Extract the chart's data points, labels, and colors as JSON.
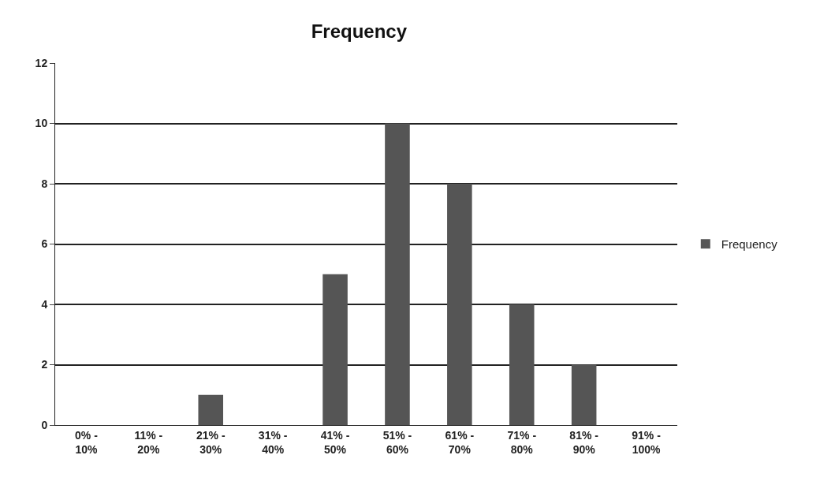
{
  "chart_data": {
    "type": "bar",
    "title": "Frequency",
    "categories": [
      "0% - 10%",
      "11% - 20%",
      "21% - 30%",
      "31% - 40%",
      "41% - 50%",
      "51% - 60%",
      "61% - 70%",
      "71% - 80%",
      "81% - 90%",
      "91% - 100%"
    ],
    "series": [
      {
        "name": "Frequency",
        "color": "#555555",
        "values": [
          0,
          0,
          1,
          0,
          5,
          10,
          8,
          4,
          2,
          0
        ]
      }
    ],
    "ylim": [
      0,
      12
    ],
    "yticks": [
      0,
      2,
      4,
      6,
      8,
      10,
      12
    ],
    "grid": "y",
    "legend": "right"
  }
}
